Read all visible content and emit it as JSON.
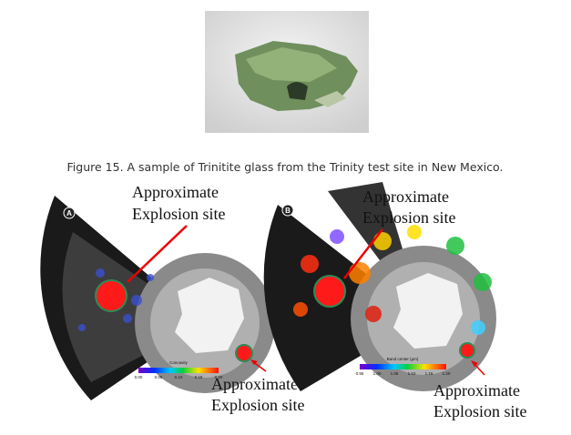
{
  "figure": {
    "caption": "Figure 15.  A sample of  Trinitite glass from the Trinity test site in New Mexico."
  },
  "panels": [
    {
      "label": "A",
      "annotations": [
        [
          "Approximate",
          "Explosion site"
        ],
        [
          "Approximate",
          "Explosion site"
        ]
      ],
      "colorbar": {
        "title": "Concavity",
        "ticks": [
          "0.00",
          "0.05",
          "0.10",
          "0.15",
          "0.20"
        ]
      }
    },
    {
      "label": "B",
      "annotations": [
        [
          "Approximate",
          "Explosion site"
        ],
        [
          "Approximate",
          "Explosion site"
        ]
      ],
      "colorbar": {
        "title": "Band center (µm)",
        "ticks": [
          "0.95",
          "1.00",
          "1.05",
          "1.10",
          "1.15",
          "1.20"
        ]
      }
    }
  ]
}
